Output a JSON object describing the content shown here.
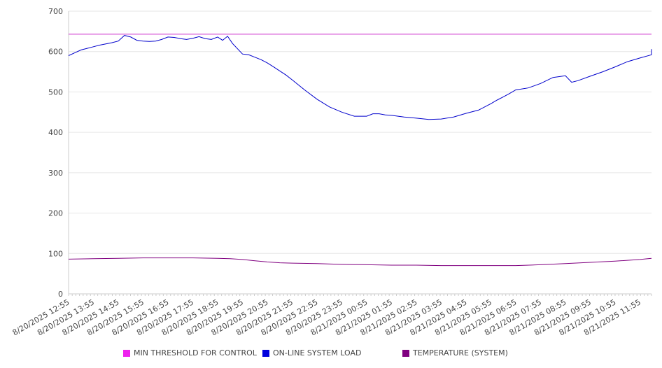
{
  "chart_data": {
    "type": "line",
    "ylim": [
      0,
      700
    ],
    "yticks": [
      0,
      100,
      200,
      300,
      400,
      500,
      600,
      700
    ],
    "xticks": [
      "8/20/2025 12:55",
      "8/20/2025 13:55",
      "8/20/2025 14:55",
      "8/20/2025 15:55",
      "8/20/2025 16:55",
      "8/20/2025 17:55",
      "8/20/2025 18:55",
      "8/20/2025 19:55",
      "8/20/2025 20:55",
      "8/20/2025 21:55",
      "8/20/2025 22:55",
      "8/20/2025 23:55",
      "8/21/2025 00:55",
      "8/21/2025 01:55",
      "8/21/2025 02:55",
      "8/21/2025 03:55",
      "8/21/2025 04:55",
      "8/21/2025 05:55",
      "8/21/2025 06:55",
      "8/21/2025 07:55",
      "8/21/2025 08:55",
      "8/21/2025 09:55",
      "8/21/2025 10:55",
      "8/21/2025 11:55"
    ],
    "grid": true,
    "legend_position": "bottom",
    "series": [
      {
        "name": "MIN THRESHOLD FOR CONTROL",
        "color": "#cc33cc",
        "x": [
          0,
          24
        ],
        "values": [
          643,
          643
        ]
      },
      {
        "name": "ON-LINE SYSTEM LOAD",
        "color": "#0000cc",
        "x": [
          0,
          0.25,
          0.5,
          0.75,
          1,
          1.25,
          1.5,
          1.75,
          2,
          2.25,
          2.5,
          2.75,
          3,
          3.25,
          3.5,
          3.75,
          4,
          4.25,
          4.5,
          4.75,
          5,
          5.25,
          5.5,
          5.75,
          6,
          6.2,
          6.4,
          6.6,
          6.8,
          7,
          7.25,
          7.5,
          7.75,
          8,
          8.25,
          8.5,
          8.75,
          9,
          9.5,
          10,
          10.5,
          11,
          11.5,
          12,
          12.25,
          12.5,
          12.75,
          13,
          13.5,
          14,
          14.5,
          15,
          15.5,
          16,
          16.5,
          17,
          17.25,
          17.5,
          17.75,
          18,
          18.5,
          19,
          19.5,
          20,
          20.25,
          20.5,
          21,
          21.5,
          22,
          22.5,
          23,
          23.5,
          24
        ],
        "values": [
          590,
          597,
          604,
          608,
          612,
          616,
          619,
          622,
          626,
          640,
          636,
          628,
          626,
          625,
          626,
          630,
          636,
          635,
          632,
          630,
          633,
          637,
          632,
          630,
          636,
          628,
          638,
          620,
          607,
          594,
          592,
          586,
          580,
          572,
          562,
          552,
          542,
          530,
          505,
          482,
          463,
          450,
          440,
          440,
          446,
          446,
          443,
          442,
          438,
          435,
          432,
          433,
          438,
          447,
          455,
          471,
          480,
          488,
          496,
          505,
          510,
          521,
          536,
          540,
          524,
          528,
          539,
          550,
          562,
          575,
          584,
          592,
          606
        ]
      },
      {
        "name": "TEMPERATURE (SYSTEM)",
        "color": "#800080",
        "x": [
          0,
          1,
          2,
          3,
          4,
          5,
          6,
          6.5,
          7,
          7.5,
          8,
          8.5,
          9,
          10,
          11,
          12,
          13,
          14,
          15,
          16,
          17,
          18,
          19,
          20,
          21,
          22,
          23,
          24
        ],
        "values": [
          86,
          87,
          88,
          89,
          89,
          89,
          88,
          87,
          85,
          82,
          79,
          77,
          76,
          75,
          73,
          72,
          71,
          71,
          70,
          70,
          70,
          70,
          72,
          75,
          78,
          81,
          85,
          88
        ]
      }
    ]
  }
}
